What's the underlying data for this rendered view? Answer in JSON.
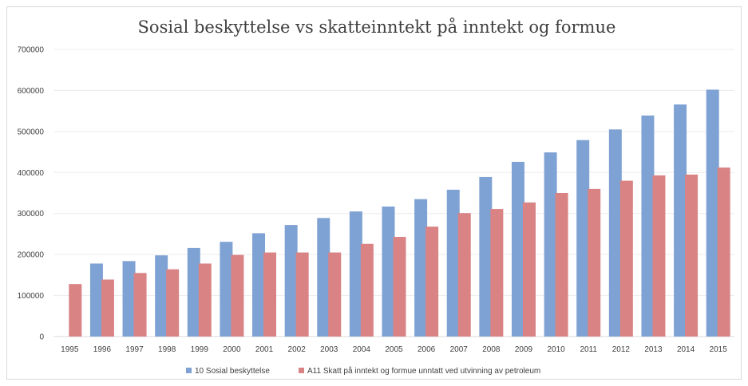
{
  "chart_data": {
    "type": "bar",
    "title": "Sosial beskyttelse vs skatteinntekt på inntekt og formue",
    "xlabel": "",
    "ylabel": "",
    "ylim": [
      0,
      700000
    ],
    "yticks": [
      0,
      100000,
      200000,
      300000,
      400000,
      500000,
      600000,
      700000
    ],
    "ytick_labels": [
      "0",
      "100000",
      "200000",
      "300000",
      "400000",
      "500000",
      "600000",
      "700000"
    ],
    "grid": true,
    "legend_position": "bottom",
    "categories": [
      "1995",
      "1996",
      "1997",
      "1998",
      "1999",
      "2000",
      "2001",
      "2002",
      "2003",
      "2004",
      "2005",
      "2006",
      "2007",
      "2008",
      "2009",
      "2010",
      "2011",
      "2012",
      "2013",
      "2014",
      "2015"
    ],
    "series": [
      {
        "name": "10 Sosial beskyttelse",
        "color": "#7fa2d4",
        "values": [
          null,
          178000,
          184000,
          198000,
          216000,
          231000,
          252000,
          272000,
          289000,
          305000,
          317000,
          335000,
          358000,
          389000,
          426000,
          449000,
          479000,
          505000,
          539000,
          566000,
          602000
        ]
      },
      {
        "name": "A11 Skatt på inntekt og formue unntatt ved utvinning av petroleum",
        "color": "#d98385",
        "values": [
          128000,
          139000,
          155000,
          164000,
          178000,
          199000,
          205000,
          205000,
          205000,
          226000,
          243000,
          268000,
          301000,
          311000,
          327000,
          350000,
          360000,
          380000,
          393000,
          395000,
          412000
        ]
      }
    ]
  }
}
